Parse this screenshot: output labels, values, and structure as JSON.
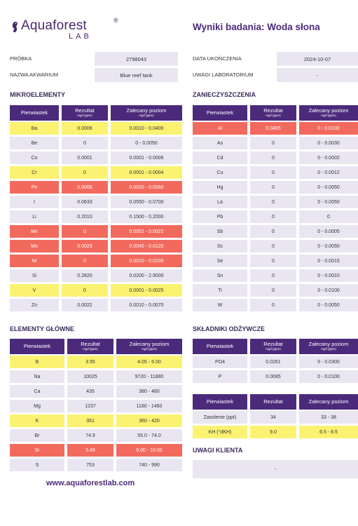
{
  "header": {
    "brand_name": "Aquaforest",
    "brand_reg": "®",
    "brand_sub": "LAB",
    "report_title": "Wyniki badania: Woda słona"
  },
  "info": {
    "sample_label": "PRÓBKA",
    "sample_value": "2798043",
    "tank_label": "NAZWA AKWARIUM",
    "tank_value": "Blue reef tank",
    "date_label": "DATA UKOŃCZENIA",
    "date_value": "2024-10-07",
    "lab_notes_label": "UWAGI LABORATORIUM",
    "lab_notes_value": "-"
  },
  "columns": {
    "element": "Pierwiastek",
    "result": "Rezultat",
    "result_unit": "mg/l (ppm)",
    "recommended": "Zalecany poziom",
    "recommended_unit": "mg/l (ppm)",
    "result_plain": "Rezultat",
    "recommended_plain": "Zalecany poziom"
  },
  "status_colors": {
    "ok": "#e9e6f2",
    "low": "#fbf271",
    "bad": "#f26a5e",
    "header": "#4b2a7b"
  },
  "microelements": {
    "title": "MIKROELEMENTY",
    "rows": [
      {
        "el": "Ba",
        "res": "0.0006",
        "rec": "0.0010 - 0.0400",
        "status": "low"
      },
      {
        "el": "Be",
        "res": "0",
        "rec": "0 - 0.0050",
        "status": "ok"
      },
      {
        "el": "Co",
        "res": "0.0001",
        "rec": "0.0001 - 0.0006",
        "status": "ok"
      },
      {
        "el": "Cr",
        "res": "0",
        "rec": "0.0001 - 0.0004",
        "status": "low"
      },
      {
        "el": "Fe",
        "res": "0.0006",
        "rec": "0.0020 - 0.0060",
        "status": "bad"
      },
      {
        "el": "I",
        "res": "0.0633",
        "rec": "0.0550 - 0.0700",
        "status": "ok"
      },
      {
        "el": "Li",
        "res": "0.2010",
        "rec": "0.1500 - 0.2000",
        "status": "ok"
      },
      {
        "el": "Mn",
        "res": "0",
        "rec": "0.0001 - 0.0022",
        "status": "bad"
      },
      {
        "el": "Mo",
        "res": "0.0023",
        "rec": "0.0045 - 0.0120",
        "status": "bad"
      },
      {
        "el": "Ni",
        "res": "0",
        "rec": "0.0010 - 0.0100",
        "status": "bad"
      },
      {
        "el": "Si",
        "res": "0.2820",
        "rec": "0.0200 - 2.9000",
        "status": "ok"
      },
      {
        "el": "V",
        "res": "0",
        "rec": "0.0001 - 0.0025",
        "status": "low"
      },
      {
        "el": "Zn",
        "res": "0.0022",
        "rec": "0.0010 - 0.0070",
        "status": "ok"
      }
    ]
  },
  "contaminants": {
    "title": "ZANIECZYSZCZENIA",
    "rows": [
      {
        "el": "Al",
        "res": "0.0405",
        "rec": "0 - 0.0100",
        "status": "bad"
      },
      {
        "el": "As",
        "res": "0",
        "rec": "0 - 0.0030",
        "status": "ok"
      },
      {
        "el": "Cd",
        "res": "0",
        "rec": "0 - 0.0002",
        "status": "ok"
      },
      {
        "el": "Cu",
        "res": "0",
        "rec": "0 - 0.0012",
        "status": "ok"
      },
      {
        "el": "Hg",
        "res": "0",
        "rec": "0 - 0.0050",
        "status": "ok"
      },
      {
        "el": "La",
        "res": "0",
        "rec": "0 - 0.0050",
        "status": "ok"
      },
      {
        "el": "Pb",
        "res": "0",
        "rec": "0",
        "status": "ok"
      },
      {
        "el": "Sb",
        "res": "0",
        "rec": "0 - 0.0005",
        "status": "ok"
      },
      {
        "el": "Sc",
        "res": "0",
        "rec": "0 - 0.0050",
        "status": "ok"
      },
      {
        "el": "Se",
        "res": "0",
        "rec": "0 - 0.0015",
        "status": "ok"
      },
      {
        "el": "Sn",
        "res": "0",
        "rec": "0 - 0.0010",
        "status": "ok"
      },
      {
        "el": "Ti",
        "res": "0",
        "rec": "0 - 0.0100",
        "status": "ok"
      },
      {
        "el": "W",
        "res": "0",
        "rec": "0 - 0.0050",
        "status": "ok"
      }
    ]
  },
  "main_elements": {
    "title": "ELEMENTY GŁÓWNE",
    "rows": [
      {
        "el": "B",
        "res": "3.55",
        "rec": "4.05 - 5.00",
        "status": "low"
      },
      {
        "el": "Na",
        "res": "10025",
        "rec": "9720 - 11880",
        "status": "ok"
      },
      {
        "el": "Ca",
        "res": "435",
        "rec": "380 - 460",
        "status": "ok"
      },
      {
        "el": "Mg",
        "res": "1237",
        "rec": "1180 - 1460",
        "status": "ok"
      },
      {
        "el": "K",
        "res": "351",
        "rec": "360 - 420",
        "status": "low"
      },
      {
        "el": "Br",
        "res": "74.9",
        "rec": "55.0 - 74.0",
        "status": "ok"
      },
      {
        "el": "Sr",
        "res": "5.49",
        "rec": "6.00 - 10.00",
        "status": "bad"
      },
      {
        "el": "S",
        "res": "753",
        "rec": "740 - 990",
        "status": "ok"
      }
    ]
  },
  "nutrients": {
    "title": "SKŁADNIKI ODŻYWCZE",
    "rows": [
      {
        "el": "PO4",
        "res": "0.0261",
        "rec": "0 - 0.0300",
        "status": "ok"
      },
      {
        "el": "P",
        "res": "0.0085",
        "rec": "0 - 0.0100",
        "status": "ok"
      }
    ]
  },
  "salinity": {
    "rows": [
      {
        "el": "Zasolenie (ppt)",
        "res": "34",
        "rec": "33 - 38",
        "status": "ok"
      },
      {
        "el": "KH (°dKH)",
        "res": "9.0",
        "rec": "6.5 - 8.5",
        "status": "low"
      }
    ]
  },
  "client_notes": {
    "title": "UWAGI KLIENTA",
    "value": "-"
  },
  "footer": {
    "url": "www.aquaforestlab.com"
  }
}
